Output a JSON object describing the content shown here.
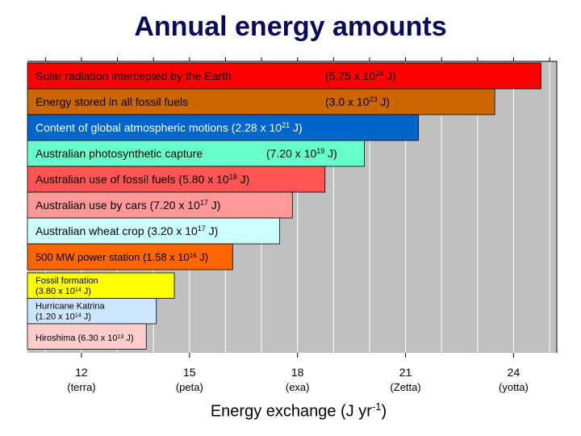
{
  "chart_data": {
    "type": "bar",
    "orientation": "horizontal",
    "title": "Annual energy amounts",
    "xlabel_prefix": "Energy exchange (J yr",
    "xlabel_exp": "-1",
    "xlabel_suffix": ")",
    "x_scale": "log10",
    "xlim": [
      10.5,
      25.2
    ],
    "xticks": [
      {
        "value": 12,
        "label": "12",
        "sublabel": "(terra)"
      },
      {
        "value": 15,
        "label": "15",
        "sublabel": "(peta)"
      },
      {
        "value": 18,
        "label": "18",
        "sublabel": "(exa)"
      },
      {
        "value": 21,
        "label": "21",
        "sublabel": "(Zetta)"
      },
      {
        "value": 24,
        "label": "24",
        "sublabel": "(yotta)"
      }
    ],
    "grid": true,
    "legend": "none",
    "bars": [
      {
        "parts": [
          {
            "t": "Solar radiation intercepted by the Earth"
          }
        ],
        "value_parts": [
          {
            "t": "(5.75 x 10"
          },
          {
            "t": "24",
            "sup": true
          },
          {
            "t": " J)"
          }
        ],
        "value": 5.75e+24,
        "color": "#ff0000"
      },
      {
        "parts": [
          {
            "t": "Energy stored in all fossil fuels"
          }
        ],
        "value_parts": [
          {
            "t": "(3.0 x 10"
          },
          {
            "t": "23",
            "sup": true
          },
          {
            "t": " J)"
          }
        ],
        "value": 3e+23,
        "color": "#cc6600"
      },
      {
        "parts": [
          {
            "t": "Content of global atmospheric motions (2.28 x 10"
          },
          {
            "t": "21",
            "sup": true
          },
          {
            "t": " J)"
          }
        ],
        "value": 2.28e+21,
        "color": "#0066cc",
        "text_color": "#ffffff"
      },
      {
        "parts": [
          {
            "t": "Australian photosynthetic capture"
          }
        ],
        "value_parts": [
          {
            "t": "(7.20 x 10"
          },
          {
            "t": "19",
            "sup": true
          },
          {
            "t": " J)"
          }
        ],
        "value": 7.2e+19,
        "color": "#66ffcc"
      },
      {
        "parts": [
          {
            "t": "Australian use of fossil fuels (5.80 x 10"
          },
          {
            "t": "18",
            "sup": true
          },
          {
            "t": " J)"
          }
        ],
        "value": 5.8e+18,
        "color": "#ff5555"
      },
      {
        "parts": [
          {
            "t": "Australian use by cars (7.20 x 10"
          },
          {
            "t": "17",
            "sup": true
          },
          {
            "t": " J)"
          }
        ],
        "value": 7.2e+17,
        "color": "#ff9999"
      },
      {
        "parts": [
          {
            "t": "Australian wheat crop (3.20 x 10"
          },
          {
            "t": "17",
            "sup": true
          },
          {
            "t": " J)"
          }
        ],
        "value": 3.2e+17,
        "color": "#ccffff"
      },
      {
        "parts": [
          {
            "t": "500 MW power station (1.58 x 10"
          },
          {
            "t": "16",
            "sup": true
          },
          {
            "t": " J)"
          }
        ],
        "value": 1.58e+16,
        "color": "#ff6600"
      },
      {
        "parts": [
          {
            "t": "Fossil formation"
          },
          {
            "t": "(3.80 x 10",
            "br": true
          },
          {
            "t": "14",
            "sup": true
          },
          {
            "t": " J)"
          }
        ],
        "value": 380000000000000.0,
        "color": "#ffff00"
      },
      {
        "parts": [
          {
            "t": "Hurricane Katrina"
          },
          {
            "t": "(1.20 x 10",
            "br": true
          },
          {
            "t": "14",
            "sup": true
          },
          {
            "t": " J)"
          }
        ],
        "value": 120000000000000.0,
        "color": "#cce6ff"
      },
      {
        "parts": [
          {
            "t": "Hiroshima (6.30 x 10"
          },
          {
            "t": "13",
            "sup": true
          },
          {
            "t": " J)"
          }
        ],
        "value": 63000000000000.0,
        "color": "#ffcccc"
      }
    ]
  }
}
